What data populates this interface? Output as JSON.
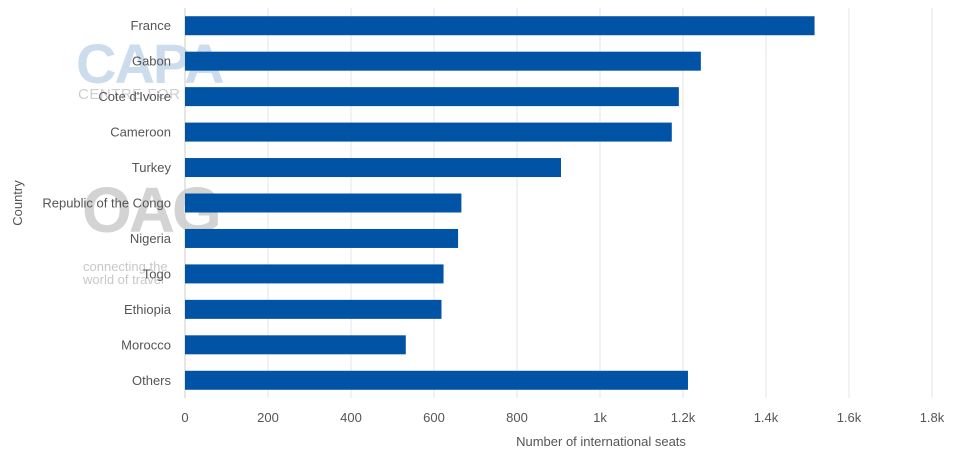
{
  "chart_data": {
    "type": "bar",
    "orientation": "horizontal",
    "categories": [
      "France",
      "Gabon",
      "Cote d'Ivoire",
      "Cameroon",
      "Turkey",
      "Republic of the Congo",
      "Nigeria",
      "Togo",
      "Ethiopia",
      "Morocco",
      "Others"
    ],
    "values": [
      1517,
      1243,
      1190,
      1173,
      906,
      666,
      658,
      623,
      618,
      532,
      1212
    ],
    "xlabel": "Number of international seats",
    "ylabel": "Country",
    "xlim": [
      0,
      1800
    ],
    "xticks": [
      0,
      200,
      400,
      600,
      800,
      1000,
      1200,
      1400,
      1600,
      1800
    ],
    "xtick_labels": [
      "0",
      "200",
      "400",
      "600",
      "800",
      "1k",
      "1.2k",
      "1.4k",
      "1.6k",
      "1.8k"
    ],
    "grid": "vertical",
    "bar_color": "#0053a5"
  },
  "watermarks": {
    "capa_text": "CAPA",
    "capa_subtext": "CENTRE FOR",
    "oag_text": "OAG",
    "oag_tagline_1": "connecting the",
    "oag_tagline_2": "world of travel"
  }
}
